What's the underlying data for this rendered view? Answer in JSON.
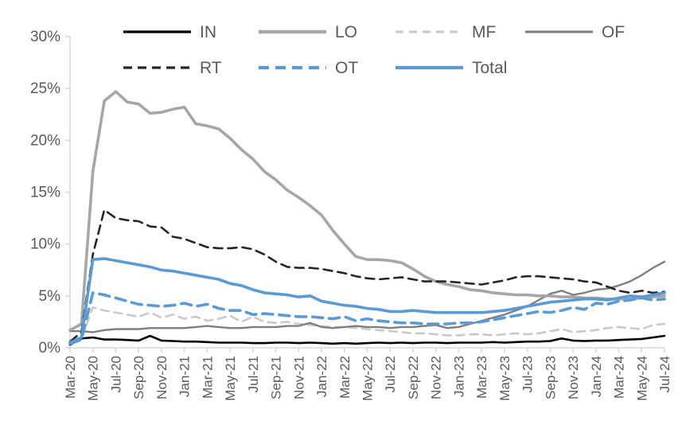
{
  "chart_data": {
    "type": "line",
    "title": "",
    "xlabel": "",
    "ylabel": "",
    "y_ticks": [
      "0%",
      "5%",
      "10%",
      "15%",
      "20%",
      "25%",
      "30%"
    ],
    "ylim": [
      0,
      30
    ],
    "grid": false,
    "legend_position": "top",
    "axis_color": "#d9d9d9",
    "label_color": "#595959",
    "x_tick_labels": [
      "Mar-20",
      "May-20",
      "Jul-20",
      "Sep-20",
      "Nov-20",
      "Jan-21",
      "Mar-21",
      "May-21",
      "Jul-21",
      "Sep-21",
      "Nov-21",
      "Jan-22",
      "Mar-22",
      "May-22",
      "Jul-22",
      "Sep-22",
      "Nov-22",
      "Jan-23",
      "Mar-23",
      "May-23",
      "Jul-23",
      "Sep-23",
      "Nov-23",
      "Jan-24",
      "Mar-24",
      "May-24",
      "Jul-24"
    ],
    "points_per_tick": 2,
    "n_points": 53,
    "series": [
      {
        "name": "IN",
        "color": "#000000",
        "dash": "none",
        "width": 2.6,
        "values": [
          0.3,
          0.9,
          1.0,
          0.8,
          0.8,
          0.75,
          0.7,
          1.15,
          0.7,
          0.65,
          0.6,
          0.6,
          0.55,
          0.5,
          0.5,
          0.5,
          0.45,
          0.45,
          0.5,
          0.5,
          0.45,
          0.5,
          0.45,
          0.4,
          0.45,
          0.4,
          0.45,
          0.5,
          0.45,
          0.5,
          0.45,
          0.5,
          0.5,
          0.45,
          0.5,
          0.5,
          0.5,
          0.55,
          0.5,
          0.55,
          0.6,
          0.6,
          0.65,
          0.9,
          0.7,
          0.65,
          0.7,
          0.7,
          0.75,
          0.8,
          0.85,
          1.0,
          1.15
        ]
      },
      {
        "name": "LO",
        "color": "#a6a6a6",
        "dash": "none",
        "width": 3.6,
        "values": [
          1.7,
          2.3,
          17.0,
          23.8,
          24.7,
          23.7,
          23.5,
          22.6,
          22.7,
          23.0,
          23.2,
          21.6,
          21.4,
          21.1,
          20.2,
          19.1,
          18.2,
          17.0,
          16.2,
          15.2,
          14.5,
          13.7,
          12.8,
          11.3,
          10.0,
          8.8,
          8.5,
          8.5,
          8.4,
          8.2,
          7.6,
          6.9,
          6.4,
          6.1,
          5.9,
          5.6,
          5.5,
          5.3,
          5.2,
          5.1,
          5.1,
          5.0,
          5.0,
          4.9,
          4.9,
          4.8,
          4.8,
          4.7,
          4.7,
          4.7,
          4.8,
          4.9,
          5.0
        ]
      },
      {
        "name": "MF",
        "color": "#c9c9c9",
        "dash": "10 7",
        "width": 2.6,
        "values": [
          0.4,
          0.9,
          3.9,
          3.6,
          3.4,
          3.2,
          3.0,
          3.4,
          2.9,
          3.2,
          2.8,
          3.0,
          2.6,
          2.8,
          3.1,
          2.5,
          3.0,
          2.5,
          2.4,
          2.5,
          2.3,
          2.2,
          2.1,
          2.0,
          2.0,
          1.9,
          1.8,
          1.7,
          1.6,
          1.5,
          1.4,
          1.4,
          1.3,
          1.2,
          1.2,
          1.3,
          1.3,
          1.2,
          1.3,
          1.4,
          1.3,
          1.4,
          1.6,
          1.8,
          1.5,
          1.6,
          1.7,
          1.9,
          2.0,
          1.9,
          1.8,
          2.2,
          2.3
        ]
      },
      {
        "name": "OF",
        "color": "#7f7f7f",
        "dash": "none",
        "width": 2.4,
        "values": [
          1.6,
          1.6,
          1.5,
          1.7,
          1.8,
          1.8,
          1.8,
          1.9,
          1.9,
          1.9,
          1.9,
          2.0,
          2.1,
          2.0,
          1.9,
          1.9,
          2.0,
          2.0,
          2.0,
          2.1,
          2.1,
          2.4,
          2.0,
          1.9,
          2.0,
          2.1,
          2.0,
          2.0,
          1.9,
          2.0,
          2.0,
          2.1,
          2.2,
          1.9,
          2.0,
          2.3,
          2.6,
          2.9,
          3.2,
          3.6,
          4.0,
          4.6,
          5.2,
          5.5,
          5.1,
          5.3,
          5.6,
          5.7,
          6.0,
          6.4,
          7.0,
          7.7,
          8.3
        ]
      },
      {
        "name": "RT",
        "color": "#262626",
        "dash": "11 7",
        "width": 2.6,
        "values": [
          0.6,
          1.5,
          9.0,
          13.3,
          12.5,
          12.3,
          12.2,
          11.7,
          11.6,
          10.7,
          10.5,
          10.1,
          9.7,
          9.6,
          9.6,
          9.7,
          9.5,
          9.0,
          8.3,
          7.8,
          7.7,
          7.7,
          7.6,
          7.4,
          7.2,
          6.9,
          6.7,
          6.6,
          6.7,
          6.8,
          6.6,
          6.4,
          6.4,
          6.4,
          6.3,
          6.2,
          6.1,
          6.3,
          6.5,
          6.8,
          6.9,
          6.9,
          6.8,
          6.7,
          6.6,
          6.4,
          6.3,
          5.9,
          5.5,
          5.3,
          5.5,
          5.3,
          5.4
        ]
      },
      {
        "name": "OT",
        "color": "#5b9bd5",
        "dash": "13 8",
        "width": 3.6,
        "values": [
          0.4,
          0.8,
          5.3,
          5.1,
          4.8,
          4.5,
          4.2,
          4.1,
          4.0,
          4.1,
          4.3,
          4.0,
          4.2,
          3.8,
          3.6,
          3.6,
          3.2,
          3.3,
          3.2,
          3.1,
          3.0,
          3.0,
          2.9,
          2.8,
          3.0,
          2.6,
          2.8,
          2.6,
          2.5,
          2.4,
          2.4,
          2.3,
          2.3,
          2.3,
          2.4,
          2.4,
          2.5,
          2.7,
          2.9,
          3.1,
          3.3,
          3.5,
          3.4,
          3.6,
          3.9,
          3.7,
          4.3,
          4.2,
          4.5,
          4.6,
          4.8,
          4.6,
          4.7
        ]
      },
      {
        "name": "Total",
        "color": "#5b9bd5",
        "dash": "none",
        "width": 3.6,
        "values": [
          0.5,
          1.0,
          8.5,
          8.6,
          8.4,
          8.2,
          8.0,
          7.8,
          7.5,
          7.4,
          7.2,
          7.0,
          6.8,
          6.6,
          6.2,
          6.0,
          5.6,
          5.3,
          5.2,
          5.1,
          4.9,
          5.0,
          4.5,
          4.3,
          4.1,
          4.0,
          3.8,
          3.7,
          3.5,
          3.5,
          3.6,
          3.5,
          3.4,
          3.4,
          3.4,
          3.4,
          3.4,
          3.5,
          3.6,
          3.8,
          4.0,
          4.2,
          4.4,
          4.5,
          4.6,
          4.7,
          4.7,
          4.6,
          4.8,
          5.0,
          4.9,
          5.1,
          5.3
        ]
      }
    ],
    "legend": {
      "row1": [
        "IN",
        "LO",
        "MF",
        "OF"
      ],
      "row2": [
        "RT",
        "OT",
        "Total"
      ]
    },
    "draw_order": [
      "MF",
      "OF",
      "LO",
      "RT",
      "IN",
      "OT",
      "Total"
    ]
  }
}
